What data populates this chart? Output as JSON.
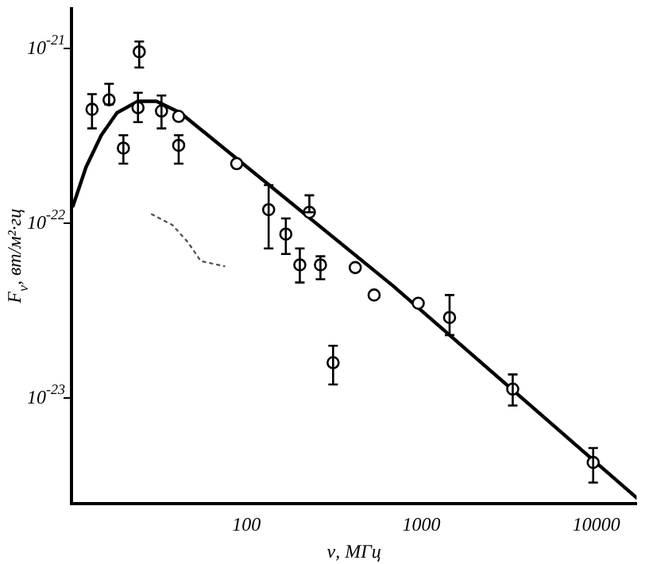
{
  "chart_data": {
    "type": "scatter",
    "xlabel": "ν, МГц",
    "ylabel": "F$_{ν}$, вт/м²·гц",
    "log": "xy",
    "grid": false,
    "xlim": [
      10,
      17000
    ],
    "ylim": [
      2.5e-24,
      1.7e-21
    ],
    "xticks": [
      100,
      1000,
      10000
    ],
    "yticks": [
      {
        "value": 1e-21,
        "label": "10$^{-21}$"
      },
      {
        "value": 1e-22,
        "label": "10$^{-22}$"
      },
      {
        "value": 1e-23,
        "label": "10$^{-23}$"
      }
    ],
    "series": [
      {
        "color": "#000000",
        "marker": "circle",
        "x": [
          13.1,
          16.4,
          19.8,
          24.4,
          24,
          32.7,
          41,
          41,
          88,
          134,
          168,
          202,
          229,
          265,
          419,
          537,
          960,
          1450,
          313,
          3330,
          9600
        ],
        "values": [
          4.5e-22,
          5.1e-22,
          2.7e-22,
          9.6e-22,
          4.6e-22,
          4.4e-22,
          4.1e-22,
          2.8e-22,
          2.2e-22,
          1.2e-22,
          8.7e-23,
          5.8e-23,
          1.16e-22,
          5.8e-23,
          5.6e-23,
          3.9e-23,
          3.5e-23,
          2.9e-23,
          1.6e-23,
          1.13e-23,
          4.3e-24
        ],
        "errors": [
          [
            3.5e-22,
            5.5e-22
          ],
          [
            4.8e-22,
            6.3e-22
          ],
          [
            2.2e-22,
            3.2e-22
          ],
          [
            7.8e-22,
            1.1e-21
          ],
          [
            3.8e-22,
            5.6e-22
          ],
          [
            3.5e-22,
            5.4e-22
          ],
          null,
          [
            2.2e-22,
            3.2e-22
          ],
          null,
          [
            7.2e-23,
            1.66e-22
          ],
          [
            6.7e-23,
            1.07e-22
          ],
          [
            4.6e-23,
            7.2e-23
          ],
          [
            1.16e-22,
            1.45e-22
          ],
          [
            4.8e-23,
            6.5e-23
          ],
          null,
          null,
          null,
          [
            2.3e-23,
            3.9e-23
          ],
          [
            1.2e-23,
            2e-23
          ],
          [
            9.1e-24,
            1.37e-23
          ],
          [
            3.3e-24,
            5.2e-24
          ]
        ]
      },
      {
        "type": "line",
        "color": "#000000",
        "marker": "none",
        "line_style": "solid",
        "x": [
          10.2,
          12.1,
          14.8,
          18.2,
          23.9,
          30.6,
          41.9,
          689,
          17000
        ],
        "values": [
          1.26e-22,
          2.1e-22,
          3.2e-22,
          4.3e-22,
          5e-22,
          5e-22,
          4.3e-22,
          4.4e-23,
          2.7e-24
        ]
      },
      {
        "type": "line",
        "color": "#555555",
        "marker": "none",
        "line_style": "dotted",
        "x": [
          28.8,
          37.8,
          46.4,
          54.8,
          74.8
        ],
        "values": [
          1.13e-22,
          9.8e-23,
          7.8e-23,
          6.1e-23,
          5.7e-23
        ]
      }
    ]
  }
}
